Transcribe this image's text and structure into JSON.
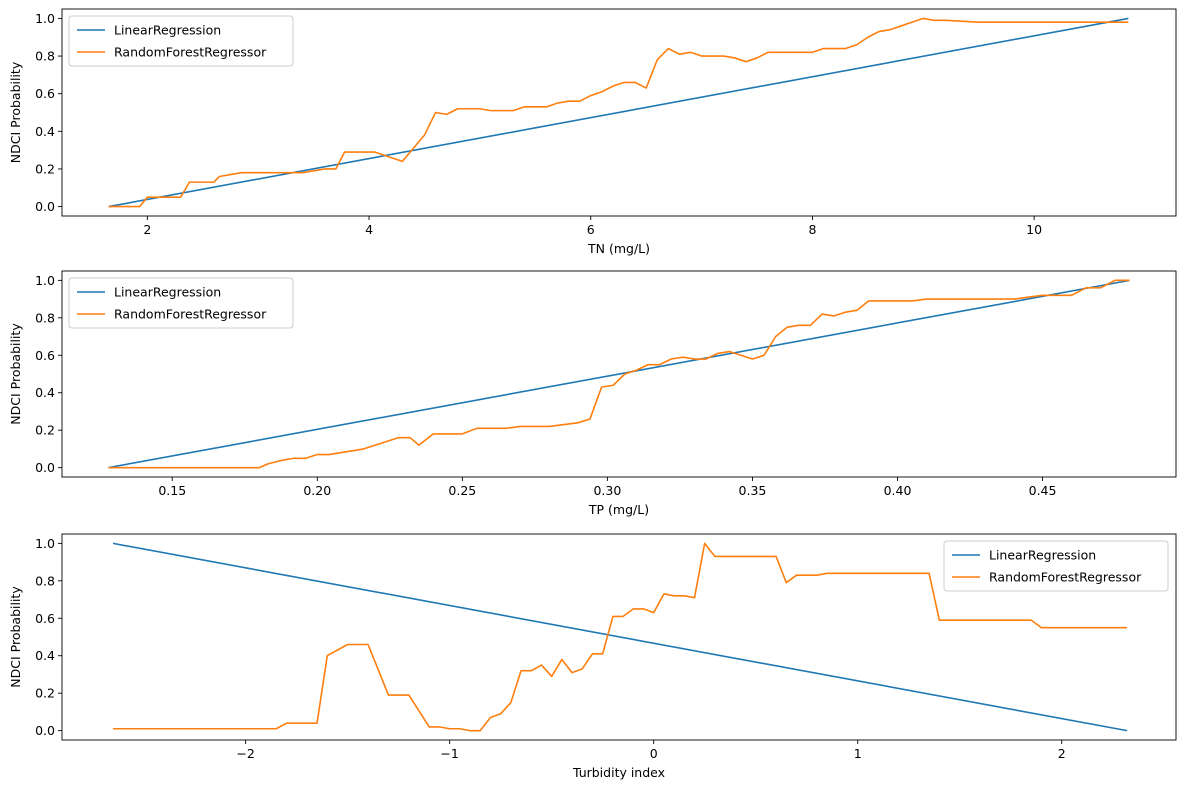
{
  "colors": {
    "linear": "#1f77b4",
    "forest": "#ff7f0e"
  },
  "chart_data": [
    {
      "type": "line",
      "xlabel": "TN (mg/L)",
      "ylabel": "NDCI Probability",
      "xlim": [
        1.23,
        11.28
      ],
      "ylim": [
        -0.05,
        1.05
      ],
      "xticks": [
        2,
        4,
        6,
        8,
        10
      ],
      "xtick_labels": [
        "2",
        "4",
        "6",
        "8",
        "10"
      ],
      "yticks": [
        0.0,
        0.2,
        0.4,
        0.6,
        0.8,
        1.0
      ],
      "ytick_labels": [
        "0.0",
        "0.2",
        "0.4",
        "0.6",
        "0.8",
        "1.0"
      ],
      "grid": false,
      "legend_position": "top-left",
      "series": [
        {
          "name": "LinearRegression",
          "x": [
            1.65,
            10.85
          ],
          "y": [
            0.0,
            1.0
          ]
        },
        {
          "name": "RandomForestRegressor",
          "x": [
            1.65,
            1.75,
            1.85,
            1.93,
            2.0,
            2.1,
            2.2,
            2.3,
            2.38,
            2.5,
            2.6,
            2.65,
            2.75,
            2.85,
            3.0,
            3.1,
            3.2,
            3.3,
            3.4,
            3.5,
            3.6,
            3.7,
            3.78,
            3.85,
            3.95,
            4.05,
            4.1,
            4.2,
            4.3,
            4.4,
            4.5,
            4.6,
            4.7,
            4.8,
            4.9,
            5.0,
            5.1,
            5.2,
            5.3,
            5.4,
            5.5,
            5.6,
            5.7,
            5.8,
            5.9,
            6.0,
            6.1,
            6.2,
            6.3,
            6.4,
            6.5,
            6.6,
            6.7,
            6.8,
            6.9,
            7.0,
            7.1,
            7.2,
            7.3,
            7.4,
            7.5,
            7.6,
            7.7,
            7.8,
            7.9,
            8.0,
            8.1,
            8.2,
            8.3,
            8.4,
            8.5,
            8.6,
            8.7,
            8.8,
            8.9,
            9.0,
            9.1,
            9.2,
            9.5,
            10.0,
            10.5,
            10.85
          ],
          "y": [
            0.0,
            0.0,
            0.0,
            0.0,
            0.05,
            0.05,
            0.05,
            0.05,
            0.13,
            0.13,
            0.13,
            0.16,
            0.17,
            0.18,
            0.18,
            0.18,
            0.18,
            0.18,
            0.18,
            0.19,
            0.2,
            0.2,
            0.29,
            0.29,
            0.29,
            0.29,
            0.28,
            0.26,
            0.24,
            0.31,
            0.38,
            0.5,
            0.49,
            0.52,
            0.52,
            0.52,
            0.51,
            0.51,
            0.51,
            0.53,
            0.53,
            0.53,
            0.55,
            0.56,
            0.56,
            0.59,
            0.61,
            0.64,
            0.66,
            0.66,
            0.63,
            0.78,
            0.84,
            0.81,
            0.82,
            0.8,
            0.8,
            0.8,
            0.79,
            0.77,
            0.79,
            0.82,
            0.82,
            0.82,
            0.82,
            0.82,
            0.84,
            0.84,
            0.84,
            0.86,
            0.9,
            0.93,
            0.94,
            0.96,
            0.98,
            1.0,
            0.99,
            0.99,
            0.98,
            0.98,
            0.98,
            0.98
          ]
        }
      ]
    },
    {
      "type": "line",
      "xlabel": "TP (mg/L)",
      "ylabel": "NDCI Probability",
      "xlim": [
        0.112,
        0.496
      ],
      "ylim": [
        -0.05,
        1.05
      ],
      "xticks": [
        0.15,
        0.2,
        0.25,
        0.3,
        0.35,
        0.4,
        0.45
      ],
      "xtick_labels": [
        "0.15",
        "0.20",
        "0.25",
        "0.30",
        "0.35",
        "0.40",
        "0.45"
      ],
      "yticks": [
        0.0,
        0.2,
        0.4,
        0.6,
        0.8,
        1.0
      ],
      "ytick_labels": [
        "0.0",
        "0.2",
        "0.4",
        "0.6",
        "0.8",
        "1.0"
      ],
      "grid": false,
      "legend_position": "top-left",
      "series": [
        {
          "name": "LinearRegression",
          "x": [
            0.128,
            0.48
          ],
          "y": [
            0.0,
            1.0
          ]
        },
        {
          "name": "RandomForestRegressor",
          "x": [
            0.128,
            0.14,
            0.15,
            0.16,
            0.17,
            0.18,
            0.183,
            0.188,
            0.192,
            0.196,
            0.2,
            0.204,
            0.208,
            0.212,
            0.216,
            0.22,
            0.224,
            0.228,
            0.232,
            0.235,
            0.24,
            0.245,
            0.25,
            0.255,
            0.26,
            0.265,
            0.27,
            0.275,
            0.28,
            0.285,
            0.29,
            0.294,
            0.298,
            0.302,
            0.306,
            0.31,
            0.314,
            0.318,
            0.322,
            0.326,
            0.33,
            0.334,
            0.338,
            0.342,
            0.346,
            0.35,
            0.354,
            0.358,
            0.362,
            0.366,
            0.37,
            0.374,
            0.378,
            0.382,
            0.386,
            0.39,
            0.395,
            0.4,
            0.405,
            0.41,
            0.415,
            0.42,
            0.43,
            0.44,
            0.445,
            0.45,
            0.455,
            0.46,
            0.465,
            0.47,
            0.475,
            0.48
          ],
          "y": [
            0.0,
            0.0,
            0.0,
            0.0,
            0.0,
            0.0,
            0.02,
            0.04,
            0.05,
            0.05,
            0.07,
            0.07,
            0.08,
            0.09,
            0.1,
            0.12,
            0.14,
            0.16,
            0.16,
            0.12,
            0.18,
            0.18,
            0.18,
            0.21,
            0.21,
            0.21,
            0.22,
            0.22,
            0.22,
            0.23,
            0.24,
            0.26,
            0.43,
            0.44,
            0.5,
            0.52,
            0.55,
            0.55,
            0.58,
            0.59,
            0.58,
            0.58,
            0.61,
            0.62,
            0.6,
            0.58,
            0.6,
            0.7,
            0.75,
            0.76,
            0.76,
            0.82,
            0.81,
            0.83,
            0.84,
            0.89,
            0.89,
            0.89,
            0.89,
            0.9,
            0.9,
            0.9,
            0.9,
            0.9,
            0.91,
            0.92,
            0.92,
            0.92,
            0.96,
            0.96,
            1.0,
            1.0
          ]
        }
      ]
    },
    {
      "type": "line",
      "xlabel": "Turbidity index",
      "ylabel": "NDCI Probability",
      "xlim": [
        -2.9,
        2.56
      ],
      "ylim": [
        -0.05,
        1.05
      ],
      "xticks": [
        -2,
        -1,
        0,
        1,
        2
      ],
      "xtick_labels": [
        "−2",
        "−1",
        "0",
        "1",
        "2"
      ],
      "yticks": [
        0.0,
        0.2,
        0.4,
        0.6,
        0.8,
        1.0
      ],
      "ytick_labels": [
        "0.0",
        "0.2",
        "0.4",
        "0.6",
        "0.8",
        "1.0"
      ],
      "grid": false,
      "legend_position": "top-right",
      "series": [
        {
          "name": "LinearRegression",
          "x": [
            -2.65,
            2.32
          ],
          "y": [
            1.0,
            0.0
          ]
        },
        {
          "name": "RandomForestRegressor",
          "x": [
            -2.65,
            -2.4,
            -2.2,
            -2.0,
            -1.9,
            -1.85,
            -1.8,
            -1.7,
            -1.65,
            -1.6,
            -1.5,
            -1.4,
            -1.3,
            -1.2,
            -1.1,
            -1.05,
            -1.0,
            -0.95,
            -0.9,
            -0.85,
            -0.8,
            -0.75,
            -0.7,
            -0.65,
            -0.6,
            -0.55,
            -0.5,
            -0.45,
            -0.4,
            -0.35,
            -0.3,
            -0.25,
            -0.2,
            -0.15,
            -0.1,
            -0.05,
            0.0,
            0.05,
            0.1,
            0.15,
            0.2,
            0.25,
            0.3,
            0.4,
            0.5,
            0.6,
            0.65,
            0.7,
            0.8,
            0.85,
            1.0,
            1.2,
            1.35,
            1.4,
            1.5,
            1.7,
            1.85,
            1.9,
            2.0,
            2.32
          ],
          "y": [
            0.01,
            0.01,
            0.01,
            0.01,
            0.01,
            0.01,
            0.04,
            0.04,
            0.04,
            0.4,
            0.46,
            0.46,
            0.19,
            0.19,
            0.02,
            0.02,
            0.01,
            0.01,
            0.0,
            0.0,
            0.07,
            0.09,
            0.15,
            0.32,
            0.32,
            0.35,
            0.29,
            0.38,
            0.31,
            0.33,
            0.41,
            0.41,
            0.61,
            0.61,
            0.65,
            0.65,
            0.63,
            0.73,
            0.72,
            0.72,
            0.71,
            1.0,
            0.93,
            0.93,
            0.93,
            0.93,
            0.79,
            0.83,
            0.83,
            0.84,
            0.84,
            0.84,
            0.84,
            0.59,
            0.59,
            0.59,
            0.59,
            0.55,
            0.55,
            0.55
          ]
        }
      ]
    }
  ]
}
